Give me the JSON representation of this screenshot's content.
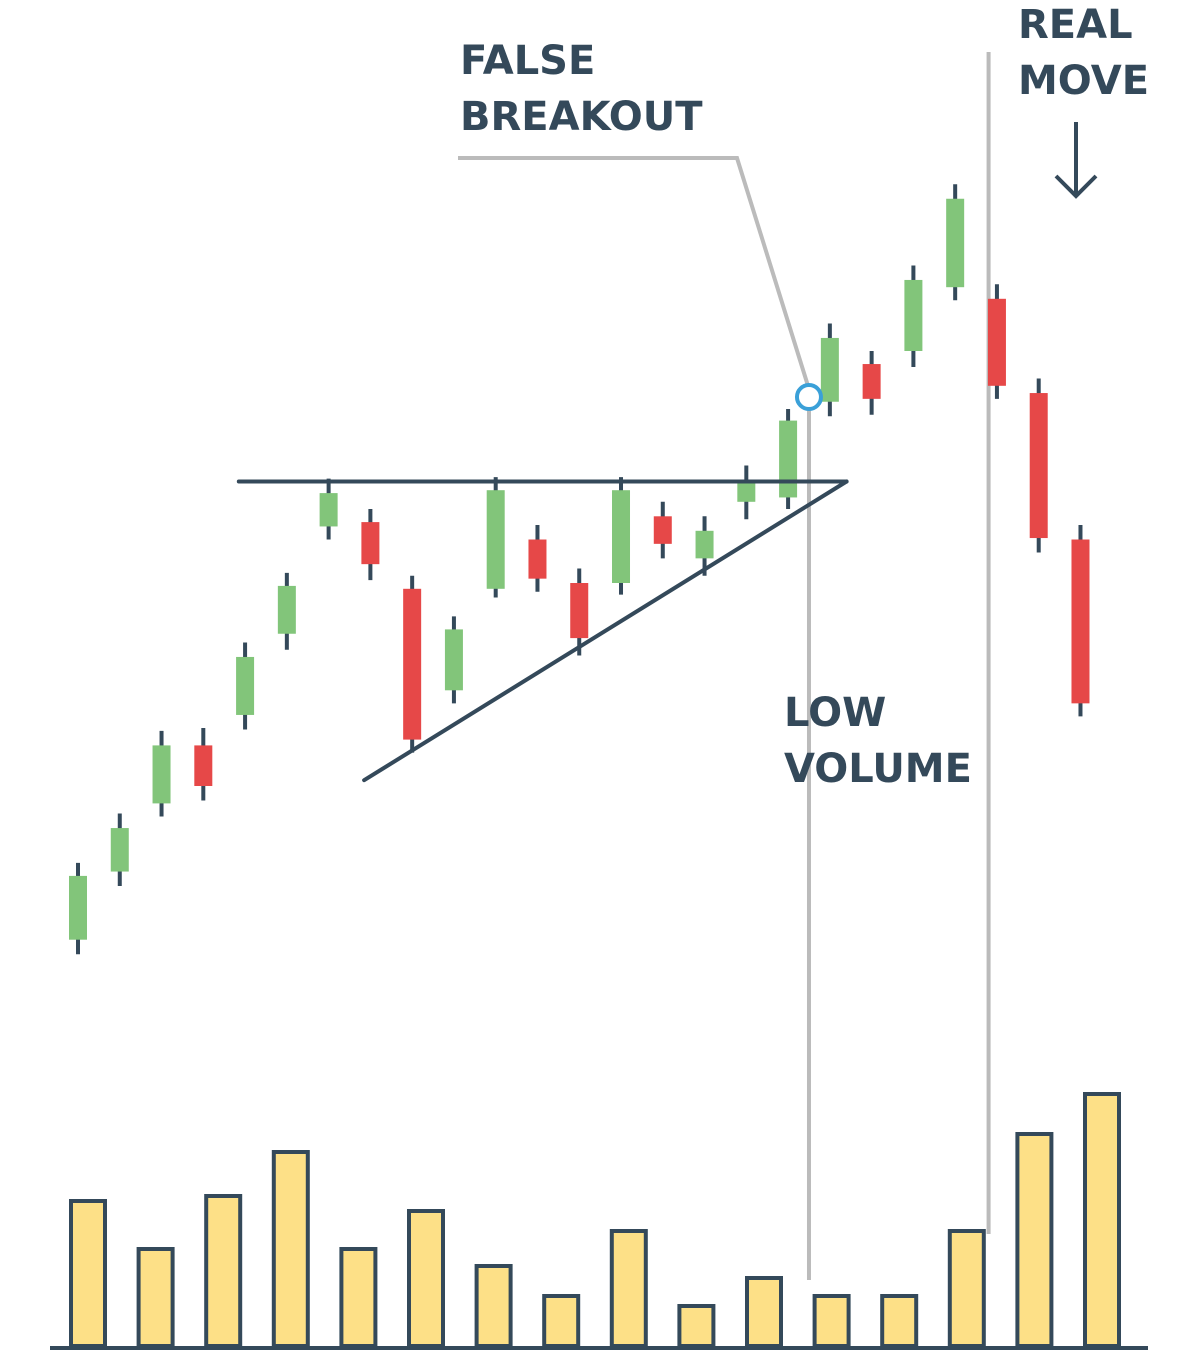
{
  "chart_data": [
    {
      "type": "candlestick",
      "colors": {
        "up": "#82c57a",
        "down": "#e64848",
        "outline": "#34495a",
        "leader": "#bbbbbb",
        "marker": "#3aa0d8"
      },
      "candles": [
        {
          "open": 254,
          "close": 298,
          "high": 307,
          "low": 244
        },
        {
          "open": 301,
          "close": 331,
          "high": 341,
          "low": 291
        },
        {
          "open": 348,
          "close": 388,
          "high": 398,
          "low": 339
        },
        {
          "open": 388,
          "close": 360,
          "high": 400,
          "low": 350
        },
        {
          "open": 409,
          "close": 449,
          "high": 459,
          "low": 399
        },
        {
          "open": 465,
          "close": 498,
          "high": 507,
          "low": 454
        },
        {
          "open": 539,
          "close": 562,
          "high": 572,
          "low": 530
        },
        {
          "open": 542,
          "close": 513,
          "high": 551,
          "low": 502
        },
        {
          "open": 496,
          "close": 392,
          "high": 505,
          "low": 383
        },
        {
          "open": 426,
          "close": 468,
          "high": 477,
          "low": 417
        },
        {
          "open": 496,
          "close": 564,
          "high": 573,
          "low": 490
        },
        {
          "open": 530,
          "close": 503,
          "high": 540,
          "low": 494
        },
        {
          "open": 500,
          "close": 462,
          "high": 510,
          "low": 450
        },
        {
          "open": 500,
          "close": 564,
          "high": 573,
          "low": 492
        },
        {
          "open": 546,
          "close": 527,
          "high": 556,
          "low": 517
        },
        {
          "open": 517,
          "close": 536,
          "high": 546,
          "low": 505
        },
        {
          "open": 556,
          "close": 571,
          "high": 581,
          "low": 544
        },
        {
          "open": 559,
          "close": 612,
          "high": 620,
          "low": 551
        },
        {
          "open": 625,
          "close": 669,
          "high": 679,
          "low": 615
        },
        {
          "open": 651,
          "close": 627,
          "high": 660,
          "low": 616
        },
        {
          "open": 660,
          "close": 709,
          "high": 719,
          "low": 649
        },
        {
          "open": 704,
          "close": 765,
          "high": 775,
          "low": 695
        },
        {
          "open": 696,
          "close": 636,
          "high": 706,
          "low": 627
        },
        {
          "open": 631,
          "close": 531,
          "high": 641,
          "low": 521
        },
        {
          "open": 530,
          "close": 417,
          "high": 540,
          "low": 408
        }
      ],
      "lines": {
        "resistance": {
          "from": [
            3.85,
            570
          ],
          "to": [
            18.4,
            570
          ]
        },
        "support": {
          "from": [
            6.85,
            364
          ],
          "to": [
            18.4,
            570
          ]
        }
      },
      "false_breakout_index": 17.5,
      "real_move_index": 21.8,
      "ylim": [
        200,
        840
      ],
      "annotations": {
        "false_breakout": [
          "FALSE",
          "BREAKOUT"
        ],
        "low_volume": [
          "LOW",
          "VOLUME"
        ],
        "real_move": [
          "REAL",
          "MOVE"
        ]
      }
    },
    {
      "type": "bar",
      "values": [
        145,
        97,
        150,
        194,
        97,
        135,
        80,
        50,
        115,
        40,
        68,
        50,
        50,
        115,
        212,
        252
      ],
      "ylim": [
        0,
        260
      ],
      "colors": {
        "fill": "#fde087",
        "outline": "#34495a"
      }
    }
  ]
}
